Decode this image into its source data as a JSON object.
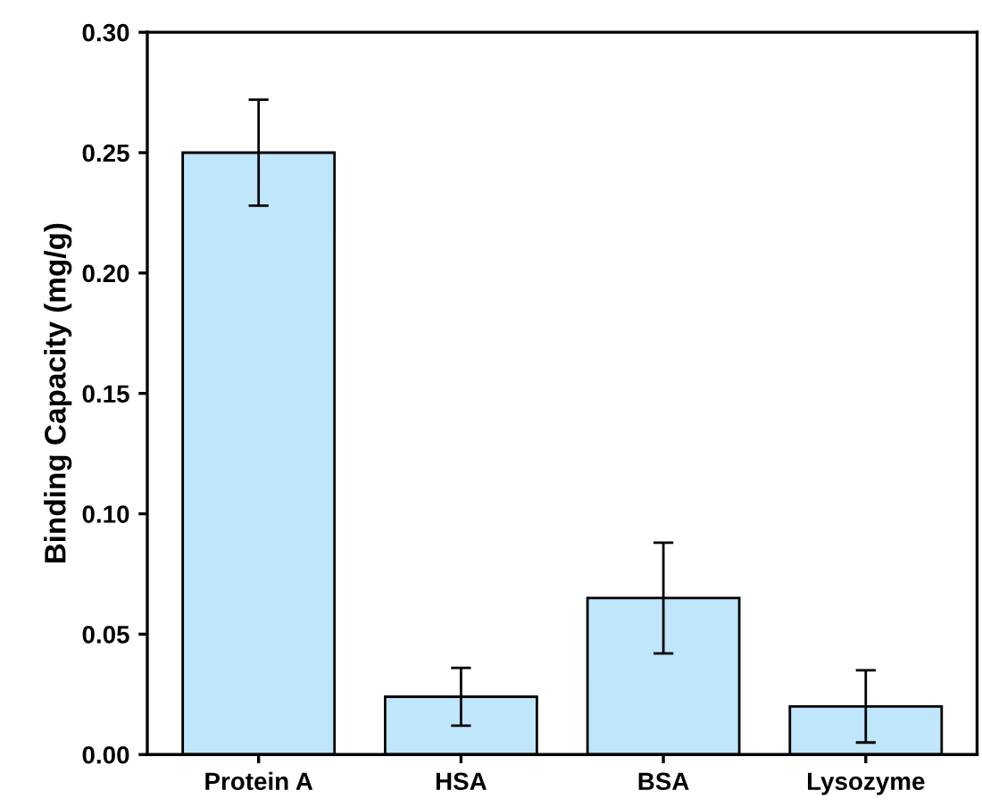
{
  "chart_data": {
    "type": "bar",
    "ylabel": "Binding Capacity (mg/g)",
    "categories": [
      "Protein A",
      "HSA",
      "BSA",
      "Lysozyme"
    ],
    "values": [
      0.25,
      0.024,
      0.065,
      0.02
    ],
    "errors": [
      0.022,
      0.012,
      0.023,
      0.015
    ],
    "color": "#bfe6fa",
    "ylim": [
      0,
      0.3
    ],
    "yticks": [
      {
        "value": 0,
        "label": "0.00"
      },
      {
        "value": 0.05,
        "label": "0.05"
      },
      {
        "value": 0.1,
        "label": "0.10"
      },
      {
        "value": 0.15,
        "label": "0.15"
      },
      {
        "value": 0.2,
        "label": "0.20"
      },
      {
        "value": 0.25,
        "label": "0.25"
      },
      {
        "value": 0.3,
        "label": "0.30"
      }
    ],
    "grid": false
  }
}
